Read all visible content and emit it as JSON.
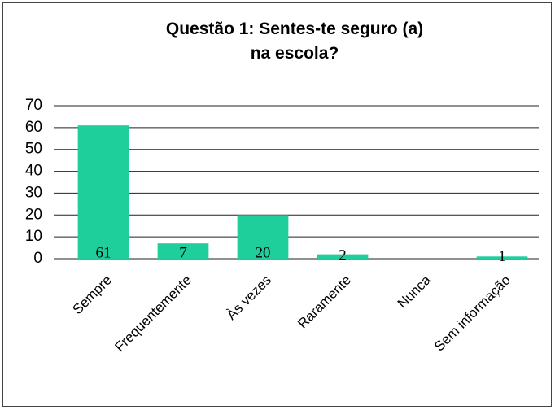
{
  "chart_data": {
    "type": "bar",
    "title": "Questão 1: Sentes-te seguro (a) na escola?",
    "categories": [
      "Sempre",
      "Frequentemente",
      "Às vezes",
      "Raramente",
      "Nunca",
      "Sem informação"
    ],
    "values": [
      61,
      7,
      20,
      2,
      0,
      1
    ],
    "value_labels": [
      "61",
      "7",
      "20",
      "2",
      null,
      "1"
    ],
    "color": "#1ecf9b",
    "ylim": [
      0,
      70
    ],
    "yticks": [
      0,
      10,
      20,
      30,
      40,
      50,
      60,
      70
    ],
    "grid": true
  }
}
